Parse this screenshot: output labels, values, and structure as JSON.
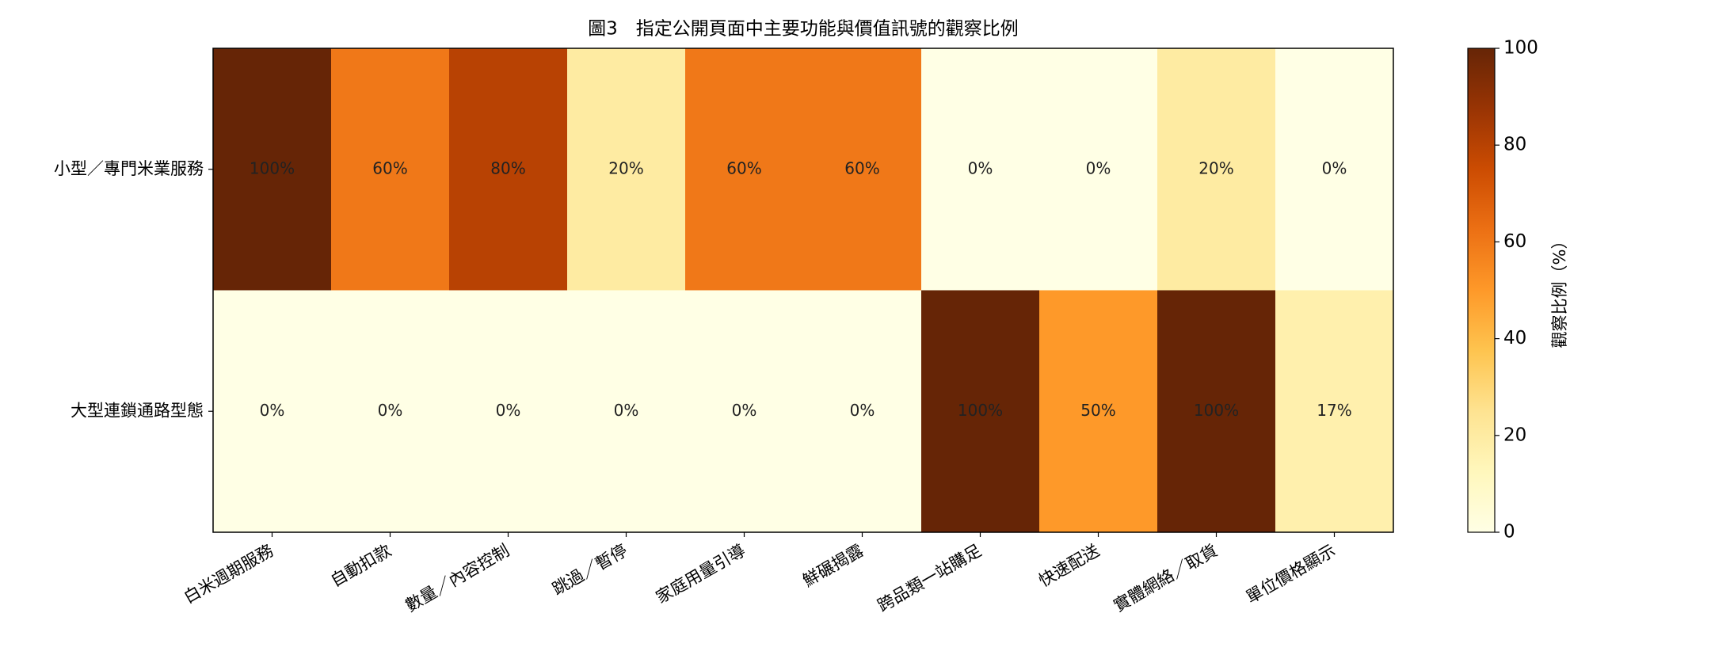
{
  "chart_data": {
    "type": "heatmap",
    "title": "圖3　指定公開頁面中主要功能與價值訊號的觀察比例",
    "x_categories": [
      "白米週期服務",
      "自動扣款",
      "數量／內容控制",
      "跳過／暫停",
      "家庭用量引導",
      "鮮碾揭露",
      "跨品類一站購足",
      "快速配送",
      "實體網絡／取貨",
      "單位價格顯示"
    ],
    "y_categories": [
      "小型／專門米業服務",
      "大型連鎖通路型態"
    ],
    "values": [
      [
        100,
        60,
        80,
        20,
        60,
        60,
        0,
        0,
        20,
        0
      ],
      [
        0,
        0,
        0,
        0,
        0,
        0,
        100,
        50,
        100,
        17
      ]
    ],
    "value_labels": [
      [
        "100%",
        "60%",
        "80%",
        "20%",
        "60%",
        "60%",
        "0%",
        "0%",
        "20%",
        "0%"
      ],
      [
        "0%",
        "0%",
        "0%",
        "0%",
        "0%",
        "0%",
        "100%",
        "50%",
        "100%",
        "17%"
      ]
    ],
    "colormap": "YlOrBr",
    "colorbar_label": "觀察比例（%）",
    "clim": [
      0,
      100
    ],
    "cticks": [
      0,
      20,
      40,
      60,
      80,
      100
    ]
  }
}
